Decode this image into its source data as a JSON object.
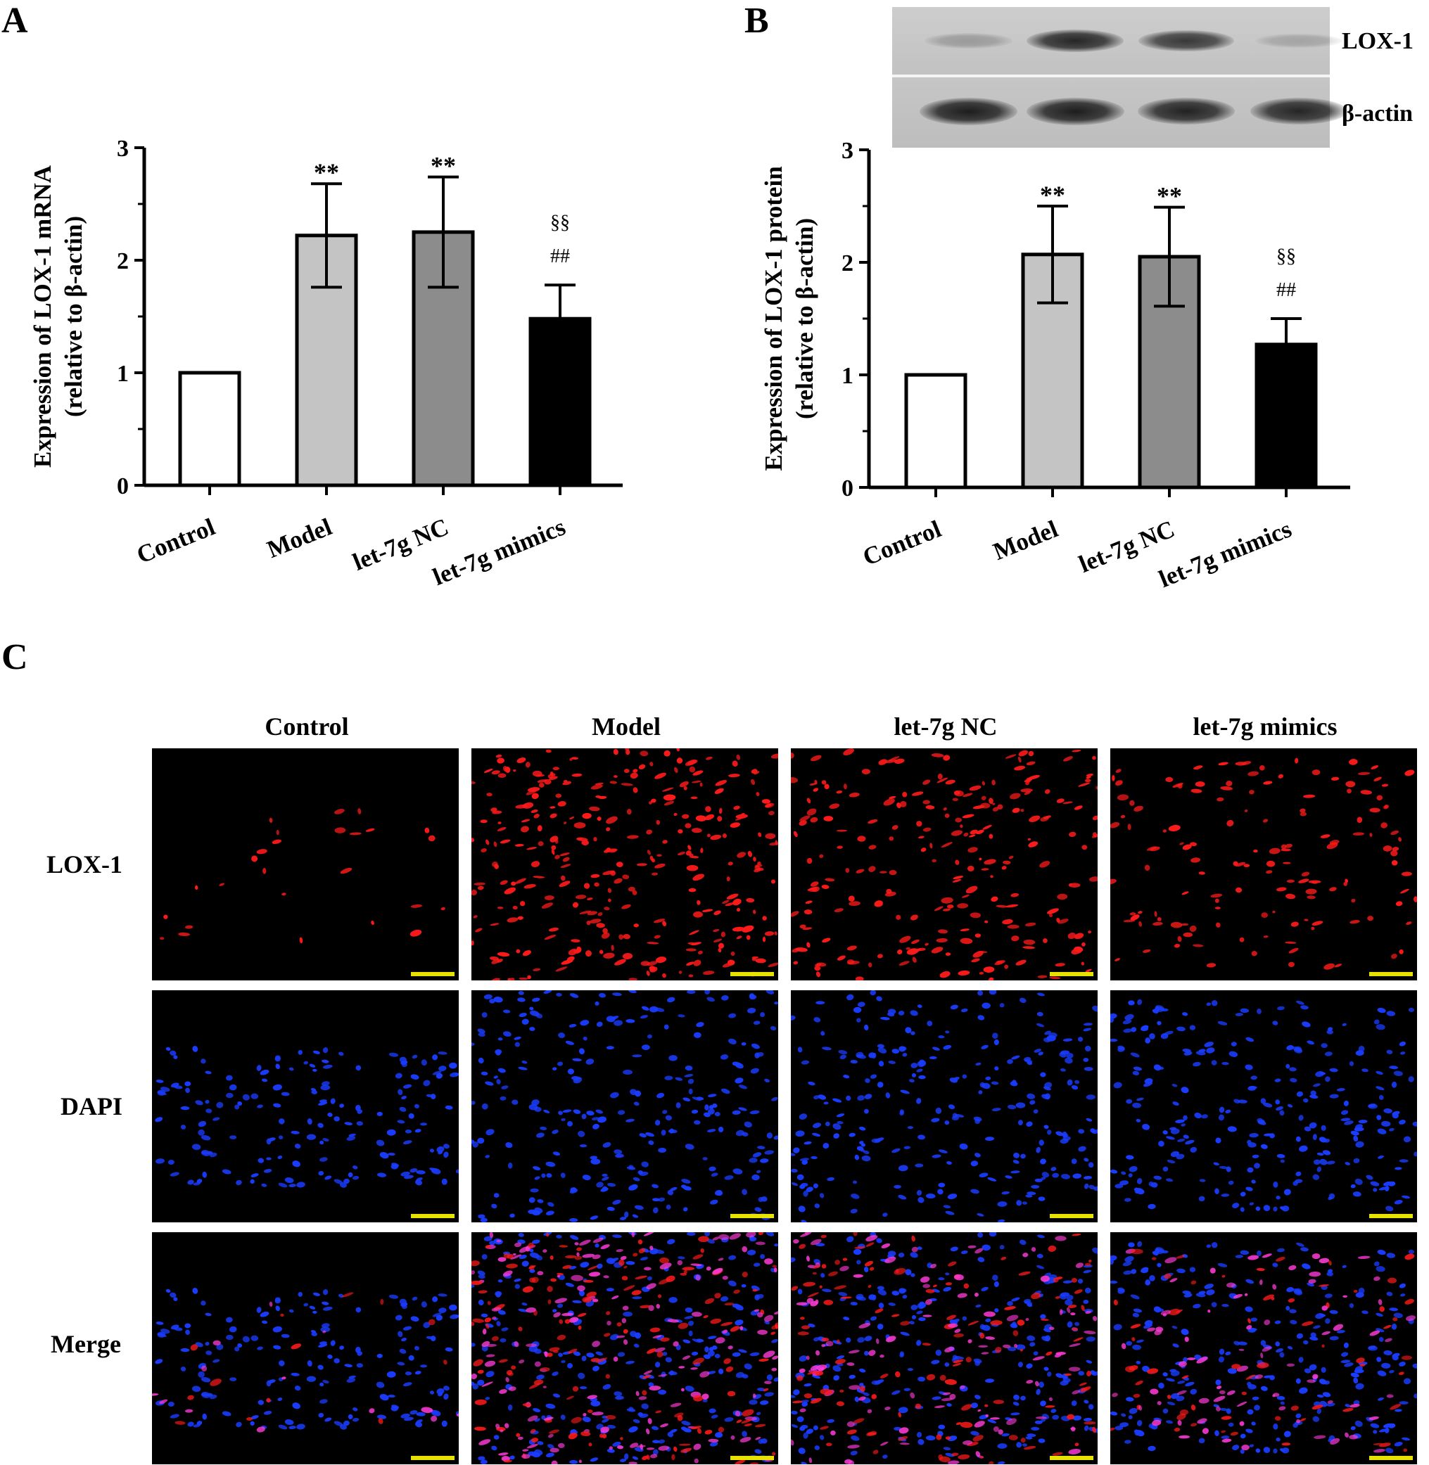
{
  "panel_labels": {
    "a": "A",
    "b": "B",
    "c": "C"
  },
  "chart_data": [
    {
      "type": "bar",
      "panel": "A",
      "ylabel_line1": "Expression of LOX-1 mRNA",
      "ylabel_line2": "(relative to β-actin)",
      "categories": [
        "Control",
        "Model",
        "let-7g NC",
        "let-7g mimics"
      ],
      "values": [
        1.0,
        2.22,
        2.25,
        1.48
      ],
      "errors": [
        0,
        0.46,
        0.49,
        0.3
      ],
      "bar_colors": [
        "#ffffff",
        "#c4c4c4",
        "#8c8c8c",
        "#000000"
      ],
      "annotations_line1": [
        "",
        "**",
        "**",
        "§§"
      ],
      "annotations_line2": [
        "",
        "",
        "",
        "##"
      ],
      "ylim": [
        0,
        3
      ],
      "yticks": [
        "0",
        "1",
        "2",
        "3"
      ]
    },
    {
      "type": "bar",
      "panel": "B",
      "ylabel_line1": "Expression of LOX-1 protein",
      "ylabel_line2": "(relative to β-actin)",
      "categories": [
        "Control",
        "Model",
        "let-7g NC",
        "let-7g mimics"
      ],
      "values": [
        1.0,
        2.07,
        2.05,
        1.27
      ],
      "errors": [
        0,
        0.43,
        0.44,
        0.23
      ],
      "bar_colors": [
        "#ffffff",
        "#c4c4c4",
        "#8c8c8c",
        "#000000"
      ],
      "annotations_line1": [
        "",
        "**",
        "**",
        "§§"
      ],
      "annotations_line2": [
        "",
        "",
        "",
        "##"
      ],
      "ylim": [
        0,
        3
      ],
      "yticks": [
        "0",
        "1",
        "2",
        "3"
      ]
    }
  ],
  "western_blot": {
    "labels": [
      "LOX-1",
      "β-actin"
    ],
    "band_intensity": {
      "LOX-1": [
        0.25,
        0.9,
        0.8,
        0.2
      ],
      "β-actin": [
        0.95,
        0.95,
        0.92,
        0.9
      ]
    }
  },
  "microscopy": {
    "columns": [
      "Control",
      "Model",
      "let-7g NC",
      "let-7g mimics"
    ],
    "rows": [
      "LOX-1",
      "DAPI",
      "Merge"
    ],
    "lox1_signal": [
      0.08,
      1.0,
      0.75,
      0.45
    ],
    "channel_colors": {
      "LOX-1": "#ff1a1a",
      "DAPI": "#1a3cff"
    },
    "scale_bar_color": "#e8e200"
  }
}
